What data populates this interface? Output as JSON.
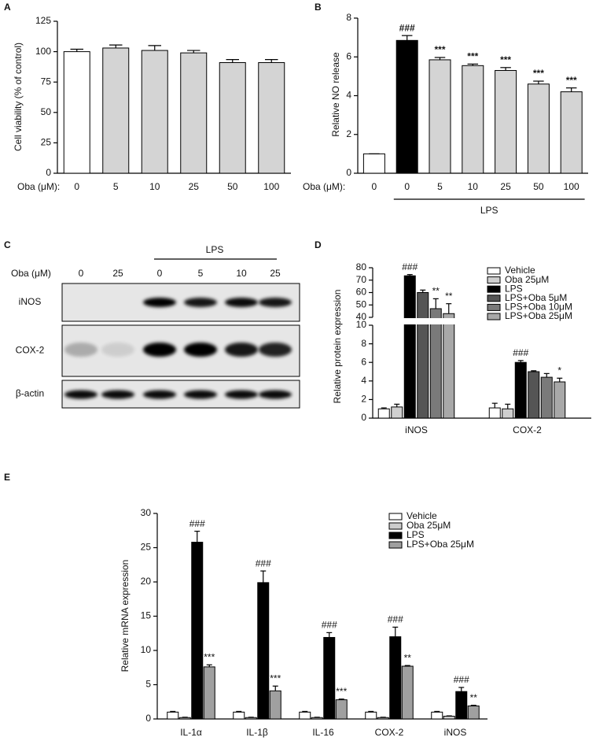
{
  "chart_data": [
    {
      "type": "bar",
      "label": "A",
      "ylabel": "Cell viability (% of control)",
      "xlabel": "Oba (μM):",
      "categories": [
        "0",
        "5",
        "10",
        "25",
        "50",
        "100"
      ],
      "values": [
        100,
        103,
        101,
        99,
        91,
        91
      ],
      "errors": [
        2,
        2.5,
        4,
        2,
        2.5,
        2.5
      ],
      "colors": [
        "#ffffff",
        "#d4d4d4",
        "#d4d4d4",
        "#d4d4d4",
        "#d4d4d4",
        "#d4d4d4"
      ],
      "ylim": [
        0,
        125
      ],
      "yticks": [
        0,
        25,
        50,
        75,
        100,
        125
      ]
    },
    {
      "type": "bar",
      "label": "B",
      "ylabel": "Relative NO release",
      "xlabel": "Oba (μM):",
      "group_label": "LPS",
      "categories": [
        "0",
        "0",
        "5",
        "10",
        "25",
        "50",
        "100"
      ],
      "values": [
        1,
        6.85,
        5.85,
        5.55,
        5.3,
        4.6,
        4.2
      ],
      "errors": [
        0,
        0.25,
        0.12,
        0.08,
        0.15,
        0.15,
        0.2
      ],
      "annotations": [
        null,
        "###",
        "***",
        "***",
        "***",
        "***",
        "***"
      ],
      "colors": [
        "#ffffff",
        "#000000",
        "#d4d4d4",
        "#d4d4d4",
        "#d4d4d4",
        "#d4d4d4",
        "#d4d4d4"
      ],
      "ylim": [
        0,
        8
      ],
      "yticks": [
        0,
        2,
        4,
        6,
        8
      ]
    },
    {
      "type": "bar",
      "label": "D",
      "ylabel": "Relative protein expression",
      "categories": [
        "iNOS",
        "COX-2"
      ],
      "series": [
        {
          "name": "Vehicle",
          "color": "#ffffff",
          "values": [
            1,
            1.1
          ],
          "errors": [
            0.1,
            0.5
          ]
        },
        {
          "name": "Oba 25μM",
          "color": "#cfcfcf",
          "values": [
            1.2,
            1.0
          ],
          "errors": [
            0.3,
            0.5
          ]
        },
        {
          "name": "LPS",
          "color": "#000000",
          "values": [
            73.5,
            6.0
          ],
          "errors": [
            1,
            0.2
          ],
          "annotations": [
            "###",
            "###"
          ]
        },
        {
          "name": "LPS+Oba 5μM",
          "color": "#555555",
          "values": [
            60,
            5.0
          ],
          "errors": [
            2,
            0.1
          ]
        },
        {
          "name": "LPS+Oba 10μM",
          "color": "#7a7a7a",
          "values": [
            47,
            4.4
          ],
          "errors": [
            8,
            0.4
          ],
          "annotations": [
            "**",
            null
          ]
        },
        {
          "name": "LPS+Oba 25μM",
          "color": "#a8a8a8",
          "values": [
            43,
            3.9
          ],
          "errors": [
            8,
            0.4
          ],
          "annotations": [
            "**",
            "*"
          ]
        }
      ],
      "ylim": [
        0,
        80
      ],
      "ybreak": [
        10,
        40
      ],
      "yticks": [
        0,
        2,
        4,
        6,
        8,
        10,
        40,
        50,
        60,
        70,
        80
      ]
    },
    {
      "type": "bar",
      "label": "E",
      "ylabel": "Relative mRNA expression",
      "categories": [
        "IL-1α",
        "IL-1β",
        "IL-16",
        "COX-2",
        "iNOS"
      ],
      "series": [
        {
          "name": "Vehicle",
          "color": "#ffffff",
          "values": [
            1,
            1,
            1,
            1,
            1
          ],
          "errors": [
            0.1,
            0.1,
            0.1,
            0.1,
            0.1
          ]
        },
        {
          "name": "Oba 25μM",
          "color": "#cccccc",
          "values": [
            0.2,
            0.2,
            0.2,
            0.2,
            0.4
          ],
          "errors": [
            0.05,
            0.05,
            0.05,
            0.05,
            0.05
          ]
        },
        {
          "name": "LPS",
          "color": "#000000",
          "values": [
            25.8,
            19.9,
            11.9,
            12,
            4.0
          ],
          "errors": [
            1.6,
            1.7,
            0.7,
            1.4,
            0.6
          ],
          "annotations": [
            "###",
            "###",
            "###",
            "###",
            "###"
          ]
        },
        {
          "name": "LPS+Oba 25μM",
          "color": "#a0a0a0",
          "values": [
            7.6,
            4.1,
            2.8,
            7.7,
            1.9
          ],
          "errors": [
            0.3,
            0.7,
            0.1,
            0.1,
            0.1
          ],
          "annotations": [
            "***",
            "***",
            "***",
            "**",
            "**"
          ]
        }
      ],
      "ylim": [
        0,
        30
      ],
      "yticks": [
        0,
        5,
        10,
        15,
        20,
        25,
        30
      ]
    }
  ],
  "blot": {
    "label": "C",
    "group_label": "LPS",
    "treatment_label": "Oba (μM)",
    "lanes": [
      "0",
      "25",
      "0",
      "5",
      "10",
      "25"
    ],
    "rows": [
      "iNOS",
      "COX-2",
      "β-actin"
    ]
  }
}
